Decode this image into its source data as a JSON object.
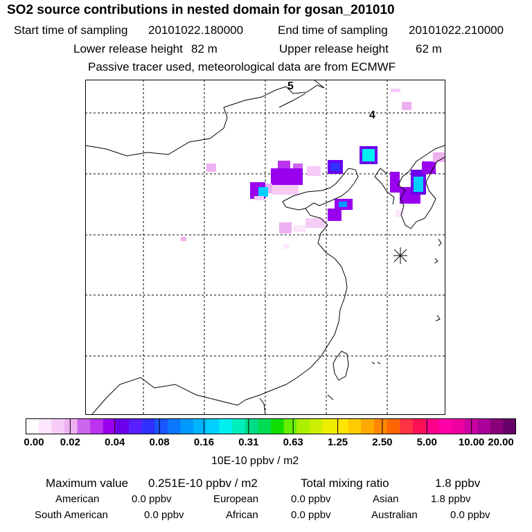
{
  "title": "SO2 source contributions in nested domain for gosan_201010",
  "sampling": {
    "start_label": "Start time of sampling",
    "start_value": "20101022.180000",
    "end_label": "End time of sampling",
    "end_value": "20101022.210000"
  },
  "release": {
    "lower_label": "Lower release height",
    "lower_value": "82 m",
    "upper_label": "Upper release height",
    "upper_value": "62 m"
  },
  "note": "Passive tracer used, meteorological data are from ECMWF",
  "map": {
    "day_labels": [
      "5",
      "4"
    ],
    "receptor_marker": "asterisk-receptor-icon"
  },
  "colorbar": {
    "tick_labels": [
      "0.00",
      "0.02",
      "0.04",
      "0.08",
      "0.16",
      "0.31",
      "0.63",
      "1.25",
      "2.50",
      "5.00",
      "10.00",
      "20.00"
    ],
    "colors": [
      "#ffffff",
      "#fbe6fb",
      "#f6ccf7",
      "#efb0f2",
      "#cc66ee",
      "#bb33ee",
      "#9900ee",
      "#6a00ee",
      "#5a1fff",
      "#3030ff",
      "#1a55ff",
      "#0a78ff",
      "#0099ff",
      "#00b4ff",
      "#00d0ff",
      "#00f0f0",
      "#00eebb",
      "#00dd88",
      "#00dd55",
      "#11dd00",
      "#66ee00",
      "#aaee00",
      "#ccee00",
      "#eeee00",
      "#ffe600",
      "#ffcc00",
      "#ffaa00",
      "#ff8800",
      "#ff6600",
      "#ff3344",
      "#ff1155",
      "#ff0088",
      "#ff00a8",
      "#ee00a0",
      "#cc00a0",
      "#aa0099",
      "#880077",
      "#660066"
    ],
    "units": "10E-10 ppbv / m2"
  },
  "stats": {
    "max_label": "Maximum value",
    "max_value": "0.251E-10 ppbv / m2",
    "total_label": "Total mixing ratio",
    "total_value": "1.8 ppbv",
    "regions": [
      {
        "name": "American",
        "value": "0.0 ppbv"
      },
      {
        "name": "European",
        "value": "0.0 ppbv"
      },
      {
        "name": "Asian",
        "value": "1.8 ppbv"
      },
      {
        "name": "South American",
        "value": "0.0 ppbv"
      },
      {
        "name": "African",
        "value": "0.0 ppbv"
      },
      {
        "name": "Australian",
        "value": "0.0 ppbv"
      }
    ]
  }
}
